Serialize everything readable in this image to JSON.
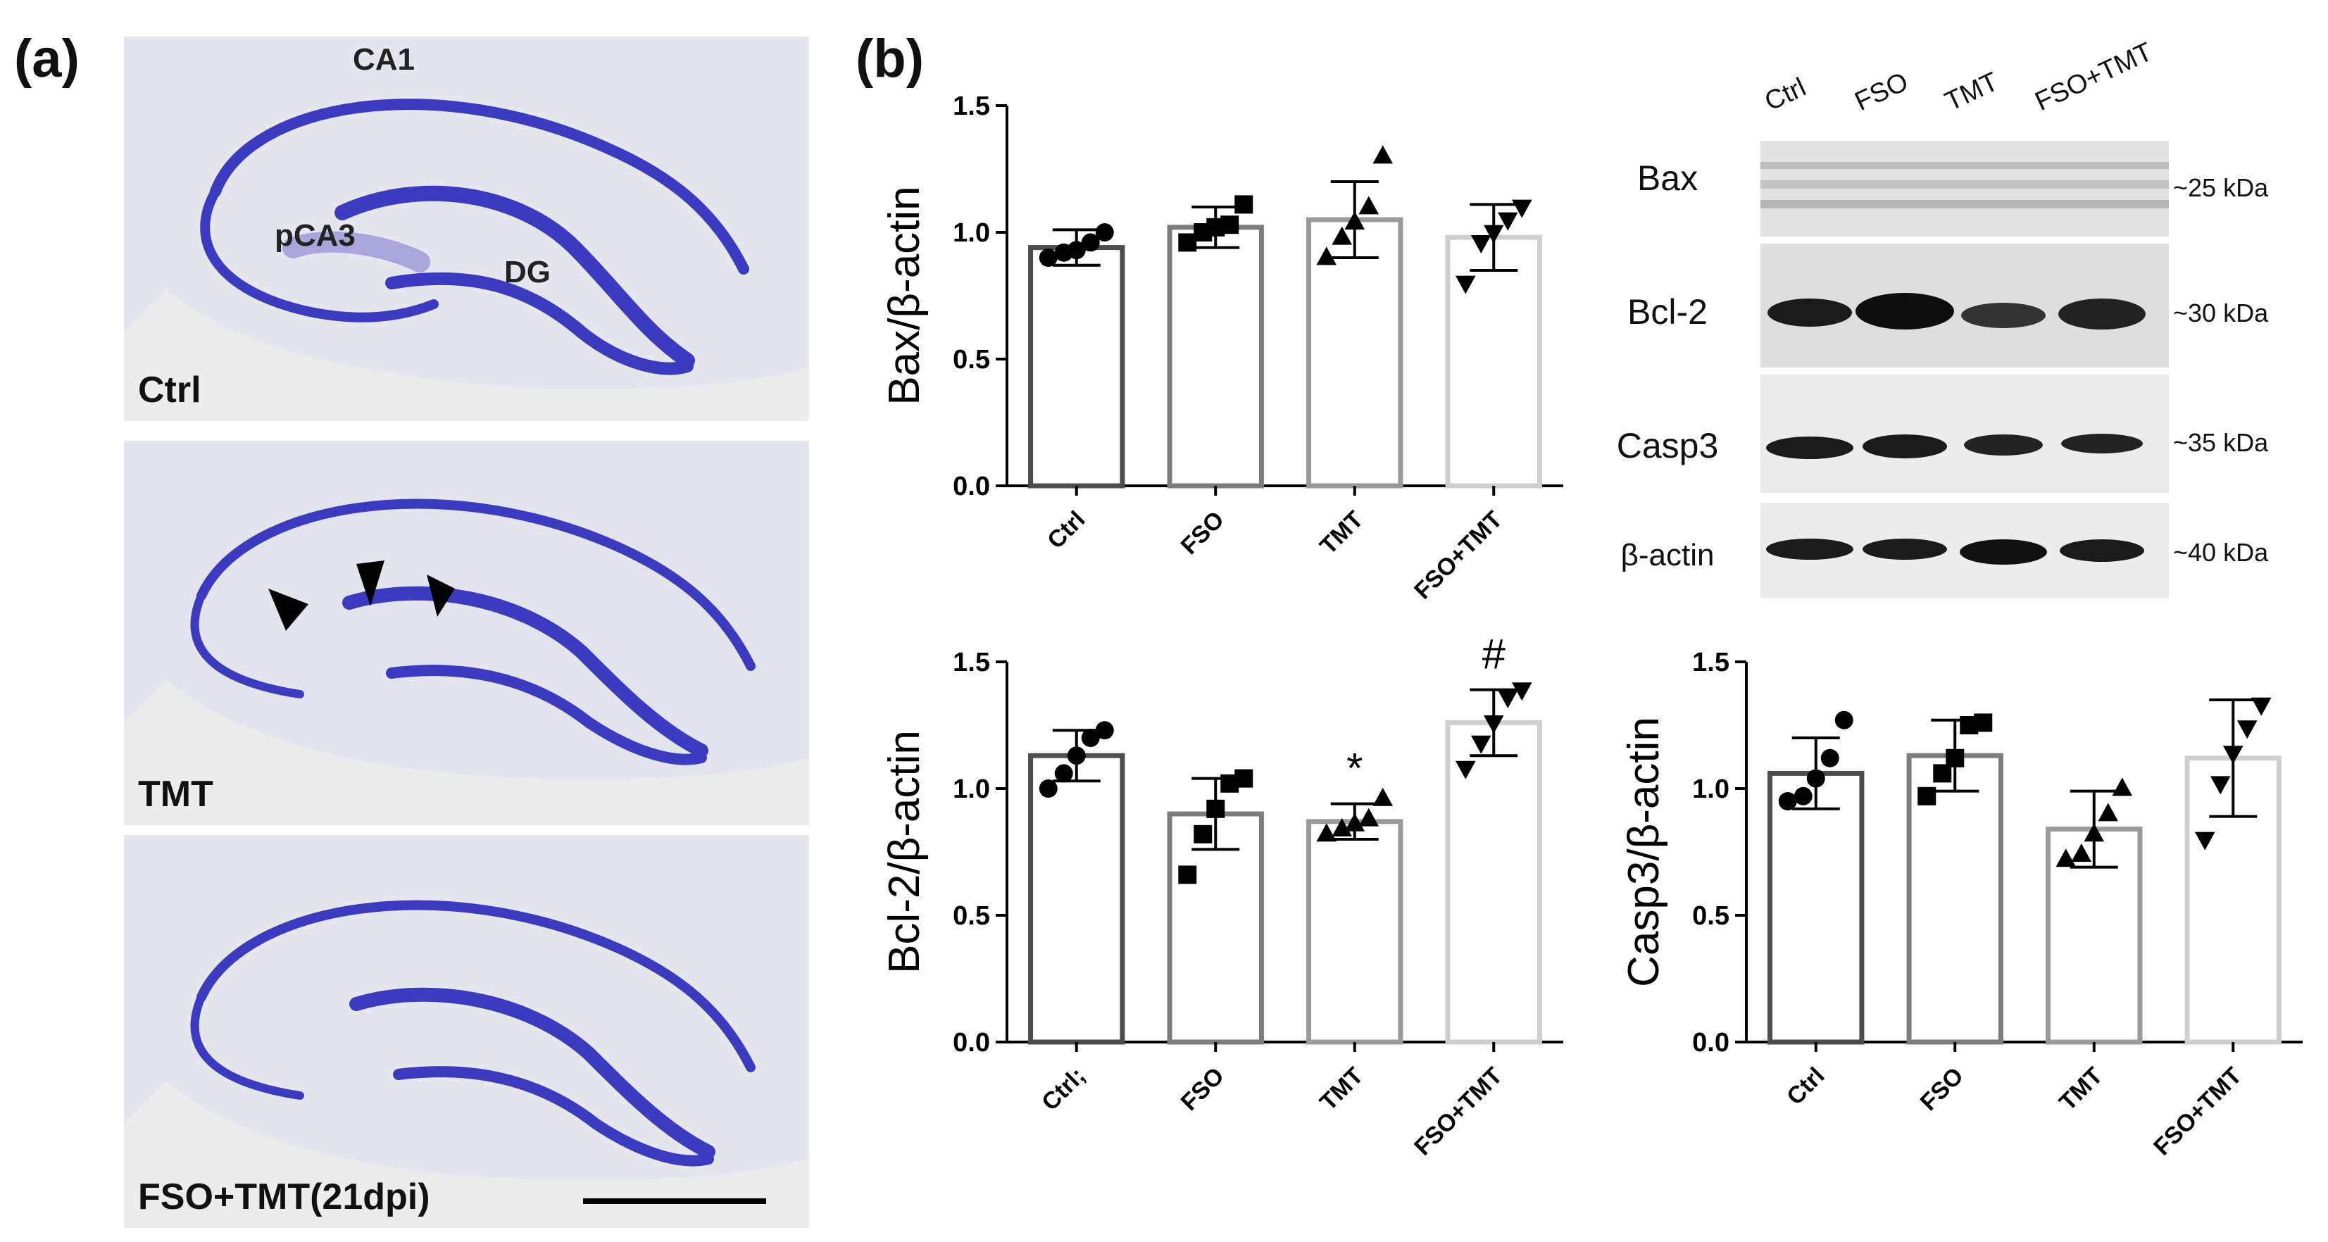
{
  "panels": {
    "a_label": "(a)",
    "b_label": "(b)"
  },
  "histology": {
    "images": [
      {
        "caption": "Ctrl",
        "regions": [
          "CA1",
          "pCA3",
          "DG"
        ]
      },
      {
        "caption": "TMT"
      },
      {
        "caption": "FSO+TMT(21dpi)"
      }
    ],
    "stain_color": "#3b3bbf"
  },
  "western_blot": {
    "lanes": [
      "Ctrl",
      "FSO",
      "TMT",
      "FSO+TMT"
    ],
    "proteins": [
      {
        "name": "Bax",
        "kda": "~25 kDa"
      },
      {
        "name": "Bcl-2",
        "kda": "~30 kDa"
      },
      {
        "name": "Casp3",
        "kda": "~35 kDa"
      },
      {
        "name": "β-actin",
        "kda": "~40 kDa"
      }
    ]
  },
  "chart_data": [
    {
      "type": "bar",
      "ylabel": "Bax/β-actin",
      "categories": [
        "Ctrl",
        "FSO",
        "TMT",
        "FSO+TMT"
      ],
      "values": [
        0.94,
        1.02,
        1.05,
        0.98
      ],
      "sd": [
        0.07,
        0.08,
        0.15,
        0.13
      ],
      "points": [
        [
          0.9,
          0.92,
          0.93,
          0.96,
          1.0
        ],
        [
          0.96,
          1.0,
          1.02,
          1.03,
          1.11
        ],
        [
          0.9,
          0.98,
          1.04,
          1.1,
          1.3
        ],
        [
          0.8,
          0.96,
          1.0,
          1.05,
          1.1
        ]
      ],
      "markers": [
        "circle",
        "square",
        "triangle",
        "triangle-down"
      ],
      "annotations": [
        "",
        "",
        "",
        ""
      ],
      "ylim": [
        0,
        1.5
      ],
      "yticks": [
        "0.0",
        "0.5",
        "1.0",
        "1.5"
      ]
    },
    {
      "type": "bar",
      "ylabel": "Bcl-2/β-actin",
      "categories": [
        "Ctrl;",
        "FSO",
        "TMT",
        "FSO+TMT"
      ],
      "values": [
        1.13,
        0.9,
        0.87,
        1.26
      ],
      "sd": [
        0.1,
        0.14,
        0.07,
        0.13
      ],
      "points": [
        [
          1.0,
          1.06,
          1.13,
          1.2,
          1.23
        ],
        [
          0.66,
          0.82,
          0.92,
          1.02,
          1.04
        ],
        [
          0.82,
          0.84,
          0.86,
          0.88,
          0.96
        ],
        [
          1.08,
          1.18,
          1.26,
          1.36,
          1.39
        ]
      ],
      "markers": [
        "circle",
        "square",
        "triangle",
        "triangle-down"
      ],
      "annotations": [
        "",
        "",
        "*",
        "#"
      ],
      "ylim": [
        0,
        1.5
      ],
      "yticks": [
        "0.0",
        "0.5",
        "1.0",
        "1.5"
      ]
    },
    {
      "type": "bar",
      "ylabel": "Casp3/β-actin",
      "categories": [
        "Ctrl",
        "FSO",
        "TMT",
        "FSO+TMT"
      ],
      "values": [
        1.06,
        1.13,
        0.84,
        1.12
      ],
      "sd": [
        0.14,
        0.14,
        0.15,
        0.23
      ],
      "points": [
        [
          0.95,
          0.97,
          1.04,
          1.12,
          1.27
        ],
        [
          0.97,
          1.06,
          1.12,
          1.25,
          1.26
        ],
        [
          0.72,
          0.74,
          0.82,
          0.9,
          1.0
        ],
        [
          0.8,
          1.02,
          1.14,
          1.24,
          1.33
        ]
      ],
      "markers": [
        "circle",
        "square",
        "triangle",
        "triangle-down"
      ],
      "annotations": [
        "",
        "",
        "",
        ""
      ],
      "ylim": [
        0,
        1.5
      ],
      "yticks": [
        "0.0",
        "0.5",
        "1.0",
        "1.5"
      ]
    }
  ],
  "colors": {
    "bar_strokes": [
      "#4d4d4d",
      "#7d7d7d",
      "#9a9a9a",
      "#cfcfcf"
    ]
  }
}
